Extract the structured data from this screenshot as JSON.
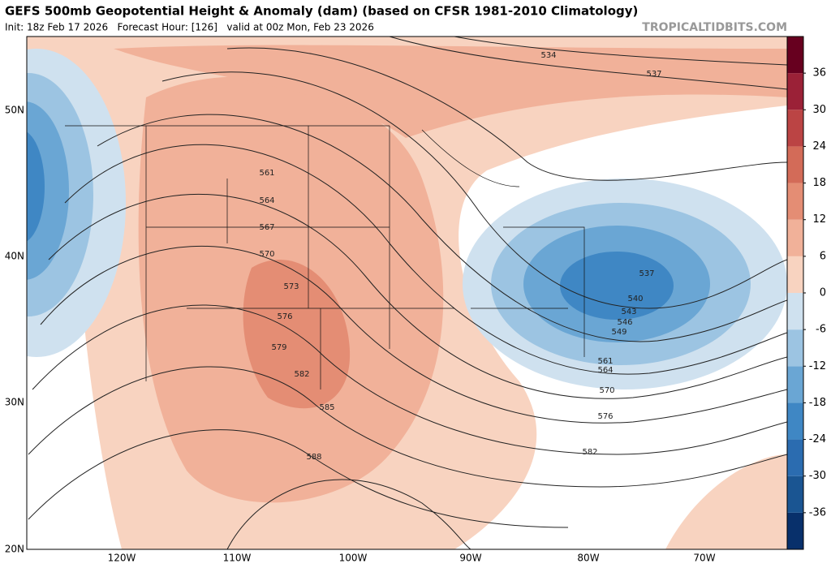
{
  "header": {
    "title": "GEFS 500mb Geopotential Height & Anomaly (dam) (based on CFSR 1981-2010 Climatology)",
    "subtitle": "Init: 18z Feb 17 2026   Forecast Hour: [126]   valid at 00z Mon, Feb 23 2026",
    "site": "TROPICALTIDBITS.COM"
  },
  "map": {
    "lat_labels": [
      "50N",
      "40N",
      "30N",
      "20N"
    ],
    "lon_labels": [
      "120W",
      "110W",
      "100W",
      "90W",
      "80W",
      "70W"
    ],
    "contour_labels": [
      "534",
      "537",
      "561",
      "564",
      "567",
      "570",
      "573",
      "576",
      "579",
      "582",
      "585",
      "588",
      "537",
      "540",
      "543",
      "546",
      "549",
      "561",
      "564",
      "570",
      "576",
      "582"
    ]
  },
  "colorbar": {
    "lim": [
      -42,
      42
    ],
    "ticks": [
      36,
      30,
      24,
      18,
      12,
      6,
      0,
      -6,
      -12,
      -18,
      -24,
      -30,
      -36
    ],
    "colors": [
      "#08306b",
      "#1a5592",
      "#2b6cb0",
      "#3f87c4",
      "#6aa6d4",
      "#9cc4e2",
      "#cfe1ef",
      "#f8d3c0",
      "#f1b199",
      "#e48d74",
      "#d36b58",
      "#bb4444",
      "#9b2137",
      "#67001f"
    ]
  }
}
